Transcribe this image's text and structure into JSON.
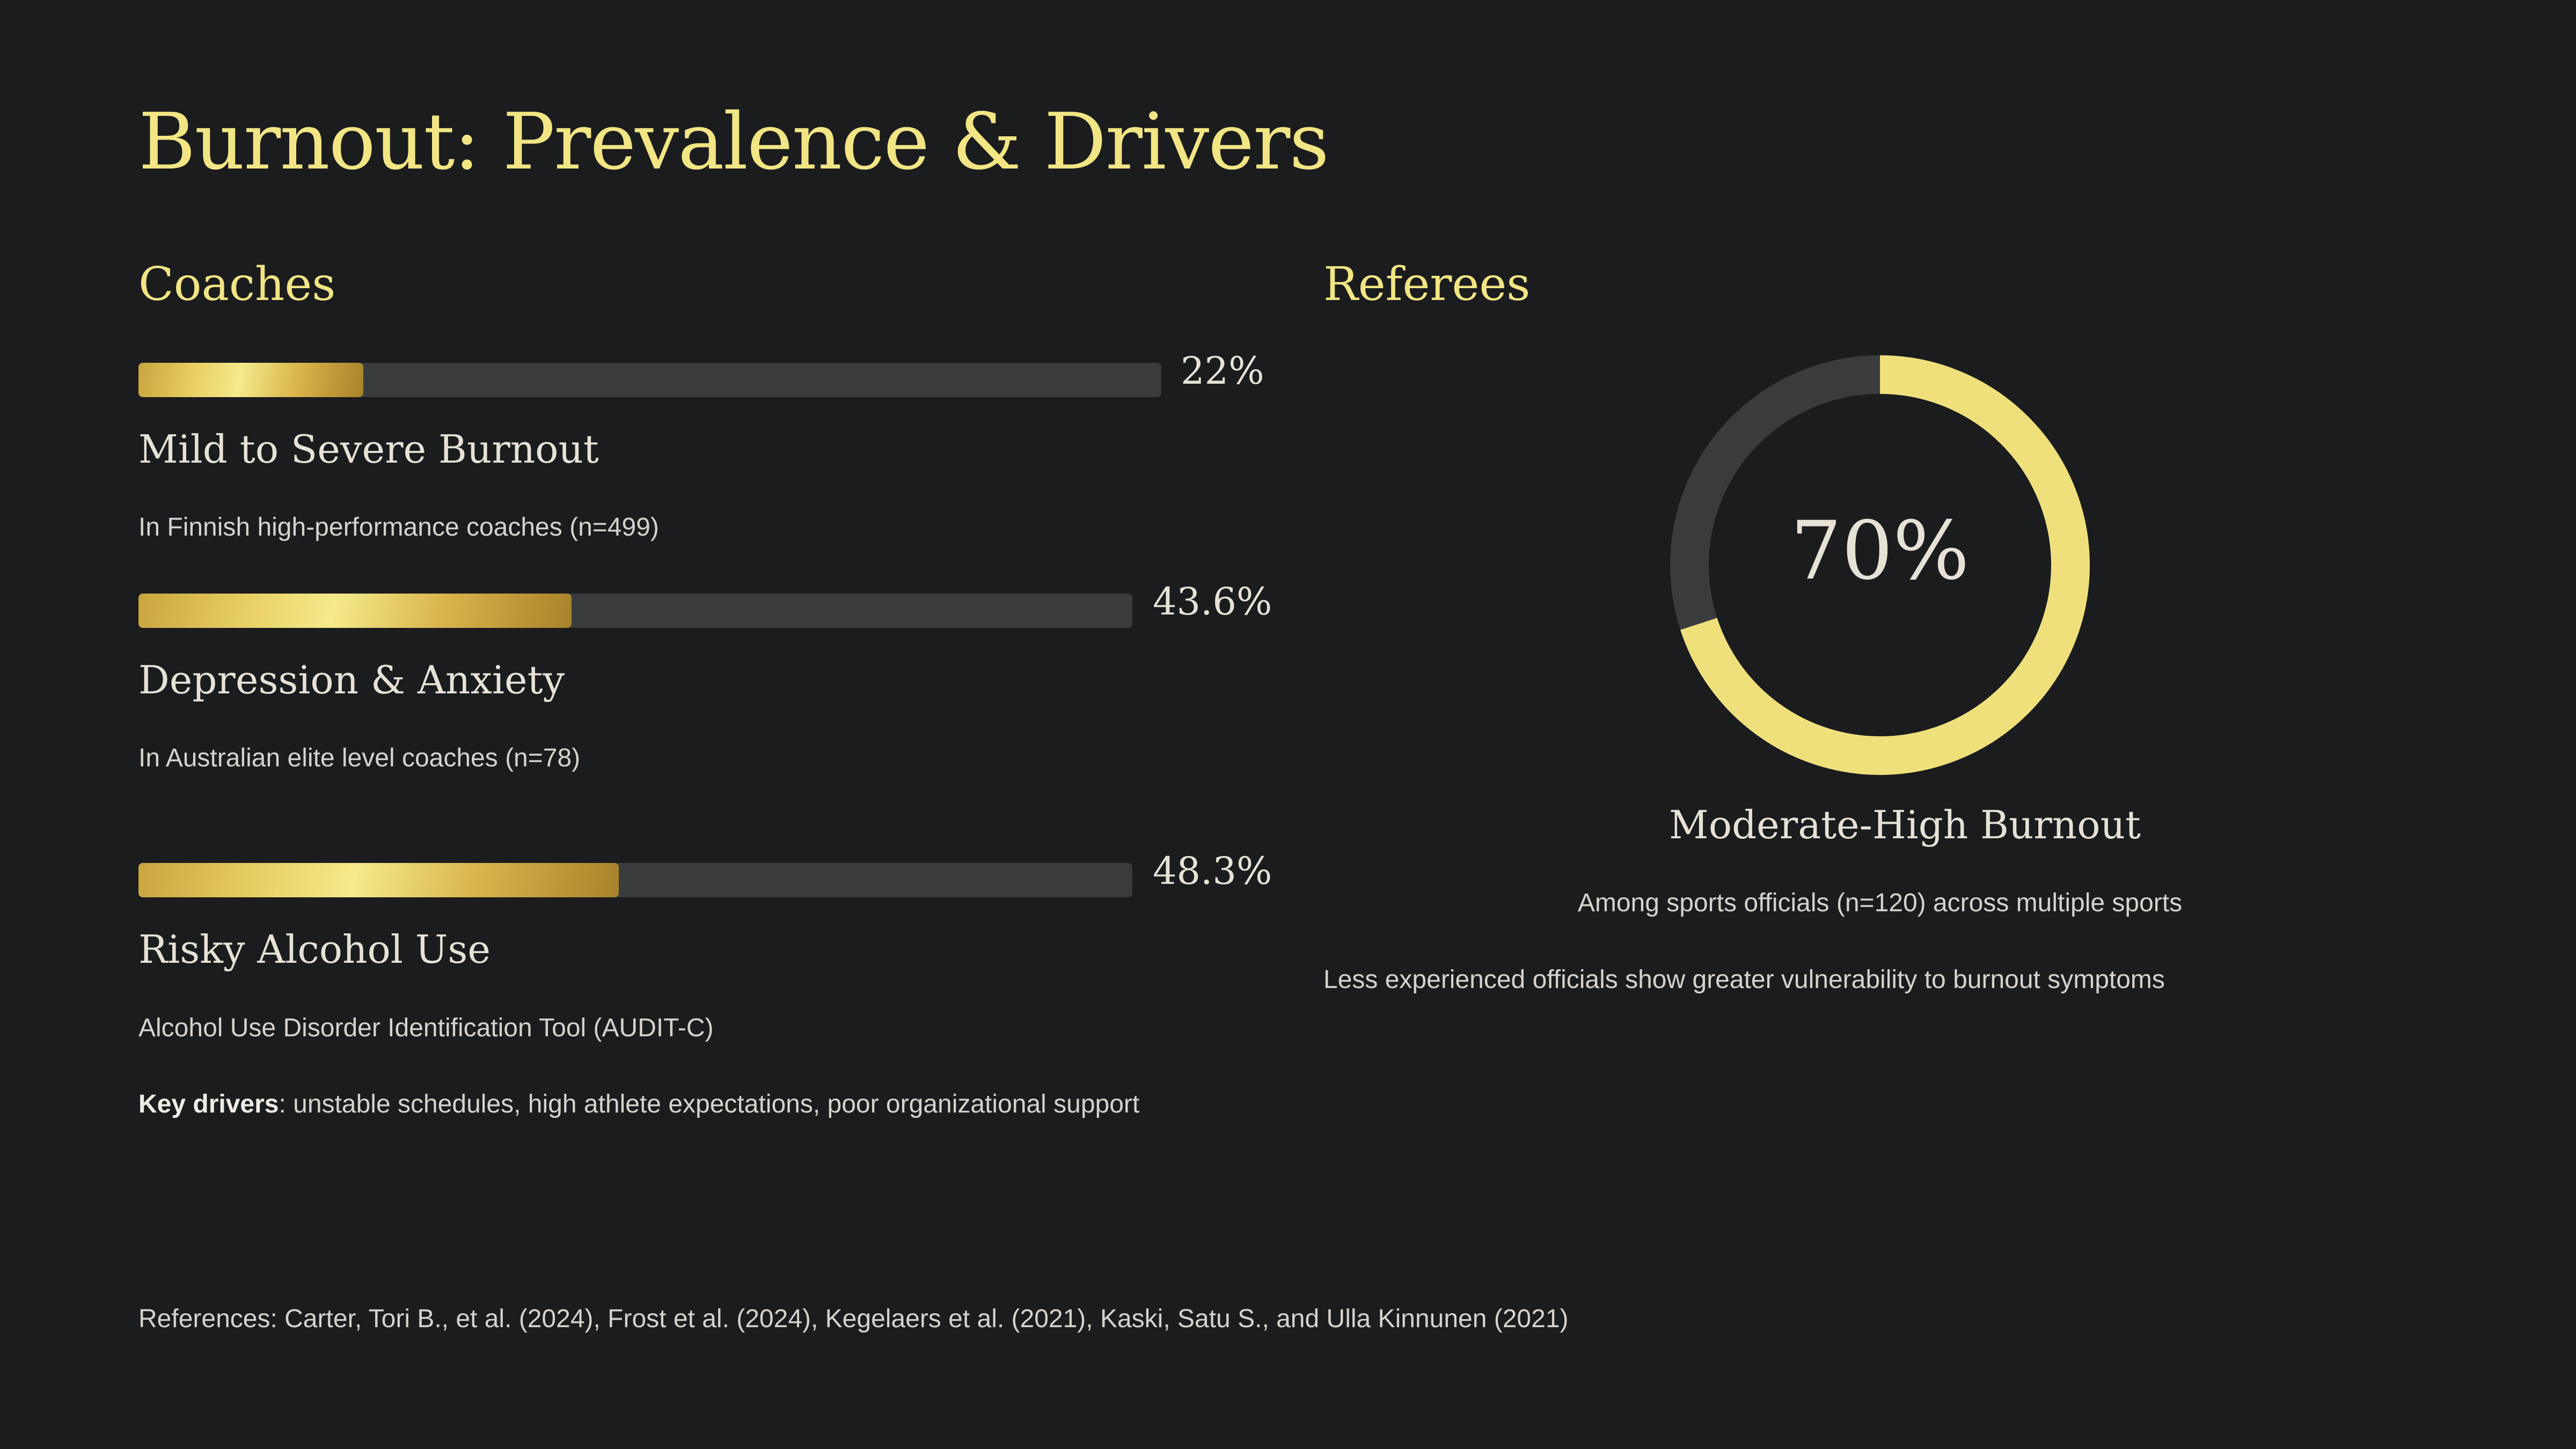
{
  "title": "Burnout: Prevalence & Drivers",
  "colors": {
    "background": "#1b1c1e",
    "accent": "#f2e584",
    "track": "#3a3b3d",
    "bar_gold": "#d4b24a"
  },
  "coaches": {
    "heading": "Coaches",
    "stats": [
      {
        "value": 22,
        "display": "22%",
        "label": "Mild to Severe Burnout",
        "note": "In Finnish high-performance coaches (n=499)"
      },
      {
        "value": 43.6,
        "display": "43.6%",
        "label": "Depression & Anxiety",
        "note": "In Australian elite level coaches (n=78)"
      },
      {
        "value": 48.3,
        "display": "48.3%",
        "label": "Risky Alcohol Use",
        "note": "Alcohol Use Disorder Identification Tool (AUDIT-C)"
      }
    ],
    "key_drivers_label": "Key drivers",
    "key_drivers_text": ": unstable schedules, high athlete expectations, poor organizational support"
  },
  "referees": {
    "heading": "Referees",
    "donut": {
      "value": 70,
      "display": "70%"
    },
    "label": "Moderate-High Burnout",
    "note": "Among sports officials (n=120) across multiple sports",
    "note2": "Less experienced officials show greater vulnerability to burnout symptoms"
  },
  "references": "References: Carter, Tori B., et al. (2024), Frost et al. (2024), Kegelaers et al. (2021), Kaski, Satu S., and Ulla Kinnunen (2021)"
}
